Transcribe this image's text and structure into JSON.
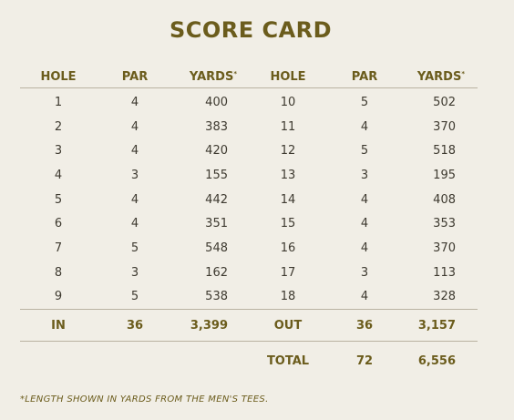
{
  "title": "SCORE CARD",
  "headers": {
    "hole_front": "HOLE",
    "par_front": "PAR",
    "yards_front": "YARDS",
    "hole_back": "HOLE",
    "par_back": "PAR",
    "yards_back": "YARDS",
    "asterisk": "*"
  },
  "holes": [
    {
      "front_hole": "1",
      "front_par": "4",
      "front_yards": "400",
      "back_hole": "10",
      "back_par": "5",
      "back_yards": "502"
    },
    {
      "front_hole": "2",
      "front_par": "4",
      "front_yards": "383",
      "back_hole": "11",
      "back_par": "4",
      "back_yards": "370"
    },
    {
      "front_hole": "3",
      "front_par": "4",
      "front_yards": "420",
      "back_hole": "12",
      "back_par": "5",
      "back_yards": "518"
    },
    {
      "front_hole": "4",
      "front_par": "3",
      "front_yards": "155",
      "back_hole": "13",
      "back_par": "3",
      "back_yards": "195"
    },
    {
      "front_hole": "5",
      "front_par": "4",
      "front_yards": "442",
      "back_hole": "14",
      "back_par": "4",
      "back_yards": "408"
    },
    {
      "front_hole": "6",
      "front_par": "4",
      "front_yards": "351",
      "back_hole": "15",
      "back_par": "4",
      "back_yards": "353"
    },
    {
      "front_hole": "7",
      "front_par": "5",
      "front_yards": "548",
      "back_hole": "16",
      "back_par": "4",
      "back_yards": "370"
    },
    {
      "front_hole": "8",
      "front_par": "3",
      "front_yards": "162",
      "back_hole": "17",
      "back_par": "3",
      "back_yards": "113"
    },
    {
      "front_hole": "9",
      "front_par": "5",
      "front_yards": "538",
      "back_hole": "18",
      "back_par": "4",
      "back_yards": "328"
    }
  ],
  "subtotals": {
    "in_label": "IN",
    "in_par": "36",
    "in_yards": "3,399",
    "out_label": "OUT",
    "out_par": "36",
    "out_yards": "3,157"
  },
  "total": {
    "label": "TOTAL",
    "par": "72",
    "yards": "6,556"
  },
  "footnote": "*LENGTH SHOWN IN YARDS FROM THE MEN'S TEES.",
  "colors": {
    "background": "#f1eee6",
    "accent": "#6b5c1c",
    "text": "#3e3a30",
    "rule": "#b9b2a1"
  }
}
